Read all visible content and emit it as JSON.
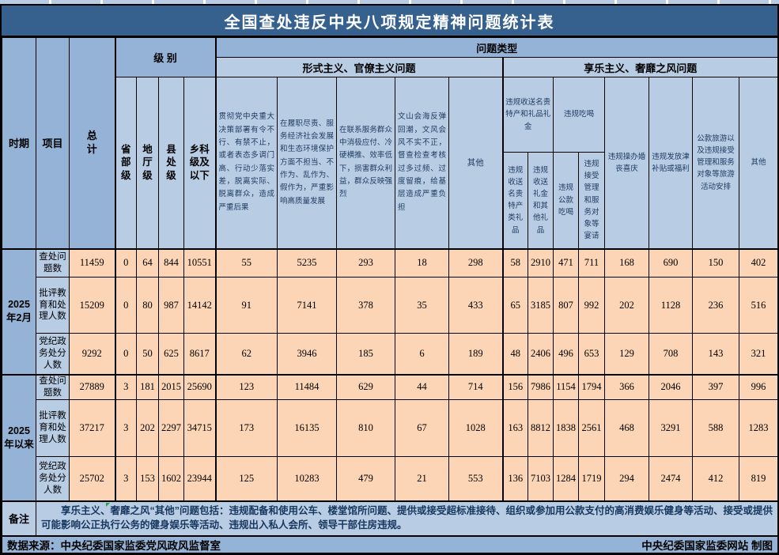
{
  "title": "全国查处违反中央八项规定精神问题统计表",
  "colors": {
    "title_bg": "#36618f",
    "header_dark_blue": "#95b3d7",
    "header_light_blue": "#b8cce4",
    "data_cell_bg": "#fbd5b5",
    "note_text": "#17365d",
    "border": "#000000",
    "marker_green": "#2e9e4f"
  },
  "header": {
    "period": "时期",
    "item": "项目",
    "total": "总计",
    "level": {
      "label": "级 别",
      "columns": [
        "省部级",
        "地厅级",
        "县处级",
        "乡科级及以下"
      ]
    },
    "problem_type": {
      "label": "问题类型",
      "formalism": {
        "label": "形式主义、官僚主义问题",
        "columns": [
          "贯彻党中央重大决策部署有令不行、有禁不止，或者表态多调门高、行动少落实差，脱离实际、脱离群众，造成严重后果",
          "在履职尽责、服务经济社会发展和生态环境保护方面不担当、不作为、乱作为、假作为，严重影响高质量发展",
          "在联系服务群众中消极应付、冷硬横推、效率低下，损害群众利益，群众反映强烈",
          "文山会海反弹回潮，文风会风不实不正，督查检查考核过多过频、过度留痕，给基层造成严重负担",
          "其他"
        ]
      },
      "hedonism": {
        "label": "享乐主义、奢靡之风问题",
        "gift_group": {
          "label": "违规收送名贵特产和礼品礼金",
          "columns": [
            "违规收送名贵特产类礼品",
            "违规收送礼金和其他礼品"
          ]
        },
        "dining_group": {
          "label": "违规吃喝",
          "columns": [
            "违规公款吃喝",
            "违规接受管理和服务对象等宴请"
          ]
        },
        "columns": [
          "违规操办婚丧喜庆",
          "违规发放津补贴或福利",
          "公款旅游以及违规接受管理和服务对象等旅游活动安排",
          "其他"
        ]
      }
    }
  },
  "chart_data": {
    "type": "table",
    "title": "全国查处违反中央八项规定精神问题统计表",
    "row_groups": [
      "2025年2月",
      "2025年以来"
    ],
    "row_labels": [
      "查处问题数",
      "批评教育和处理人数",
      "党纪政务处分人数"
    ],
    "columns": [
      "总计",
      "省部级",
      "地厅级",
      "县处级",
      "乡科级及以下",
      "形式主义-贯彻党中央重大决策部署有令不行、有禁不止，或者表态多调门高、行动少落实差，脱离实际、脱离群众，造成严重后果",
      "形式主义-在履职尽责、服务经济社会发展和生态环境保护方面不担当、不作为、乱作为、假作为，严重影响高质量发展",
      "形式主义-在联系服务群众中消极应付、冷硬横推、效率低下，损害群众利益，群众反映强烈",
      "形式主义-文山会海反弹回潮，文风会风不实不正，督查检查考核过多过频、过度留痕，给基层造成严重负担",
      "形式主义-其他",
      "违规收送名贵特产类礼品",
      "违规收送礼金和其他礼品",
      "违规公款吃喝",
      "违规接受管理和服务对象等宴请",
      "违规操办婚丧喜庆",
      "违规发放津补贴或福利",
      "公款旅游以及违规接受管理和服务对象等旅游活动安排",
      "其他"
    ],
    "rows": [
      {
        "group": "2025年2月",
        "label": "查处问题数",
        "values": [
          11459,
          0,
          64,
          844,
          10551,
          55,
          5235,
          293,
          18,
          298,
          58,
          2910,
          471,
          711,
          168,
          690,
          150,
          402
        ]
      },
      {
        "group": "2025年2月",
        "label": "批评教育和处理人数",
        "values": [
          15209,
          0,
          80,
          987,
          14142,
          91,
          7141,
          378,
          35,
          433,
          65,
          3185,
          807,
          992,
          202,
          1128,
          236,
          516
        ]
      },
      {
        "group": "2025年2月",
        "label": "党纪政务处分人数",
        "values": [
          9292,
          0,
          50,
          625,
          8617,
          62,
          3946,
          185,
          6,
          189,
          48,
          2406,
          496,
          653,
          129,
          708,
          143,
          321
        ]
      },
      {
        "group": "2025年以来",
        "label": "查处问题数",
        "values": [
          27889,
          3,
          181,
          2015,
          25690,
          123,
          11484,
          629,
          44,
          714,
          156,
          7986,
          1154,
          1794,
          366,
          2046,
          397,
          996
        ]
      },
      {
        "group": "2025年以来",
        "label": "批评教育和处理人数",
        "values": [
          37217,
          3,
          202,
          2297,
          34715,
          173,
          16135,
          810,
          67,
          1028,
          163,
          8812,
          1838,
          2561,
          468,
          3291,
          588,
          1283
        ]
      },
      {
        "group": "2025年以来",
        "label": "党纪政务处分人数",
        "values": [
          25702,
          3,
          153,
          1602,
          23944,
          125,
          10283,
          479,
          21,
          553,
          136,
          7103,
          1284,
          1719,
          294,
          2474,
          412,
          819
        ]
      }
    ]
  },
  "footer": {
    "note_label": "备注",
    "note_text": "享乐主义、奢靡之风“其他”问题包括：违规配备和使用公车、楼堂馆所问题、提供或接受超标准接待、组织或参加用公款支付的高消费娱乐健身等活动、接受或提供可能影响公正执行公务的健身娱乐等活动、违规出入私人会所、领导干部住房违规。",
    "source": "数据来源：中央纪委国家监委党风政风监督室",
    "credit": "中央纪委国家监委网站 制图"
  }
}
